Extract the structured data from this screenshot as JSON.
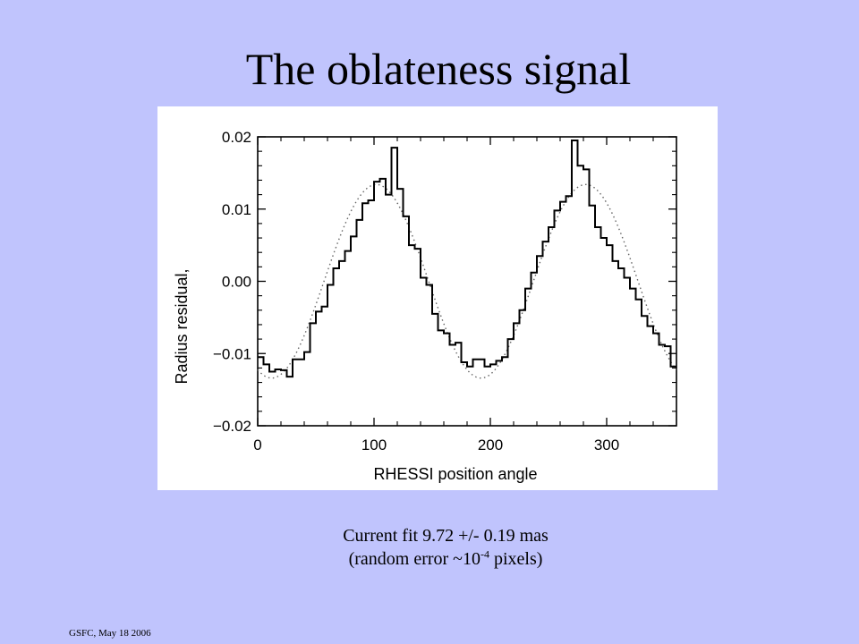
{
  "slide": {
    "title": "The oblateness signal",
    "caption_line1": "Current fit 9.72 +/- 0.19 mas",
    "caption_line2_prefix": "(random error ~10",
    "caption_line2_exp": "-4",
    "caption_line2_suffix": " pixels)",
    "footer": "GSFC,  May 18 2006"
  },
  "chart_data": {
    "type": "line",
    "title": "",
    "xlabel": "RHESSI position angle",
    "ylabel": "Radius residual,",
    "xlim": [
      0,
      360
    ],
    "ylim": [
      -0.02,
      0.02
    ],
    "x_ticks": [
      0,
      100,
      200,
      300
    ],
    "x_tick_labels": [
      "0",
      "100",
      "200",
      "300"
    ],
    "y_ticks": [
      -0.02,
      -0.01,
      0.0,
      0.01,
      0.02
    ],
    "y_tick_labels": [
      "−0.02",
      "−0.01",
      "0.00",
      "0.01",
      "0.02"
    ],
    "grid": false,
    "legend": "none",
    "series": [
      {
        "style": "histogram",
        "color": "#000000",
        "bin_width": 5,
        "x": [
          0,
          5,
          10,
          15,
          20,
          25,
          30,
          35,
          40,
          45,
          50,
          55,
          60,
          65,
          70,
          75,
          80,
          85,
          90,
          95,
          100,
          105,
          110,
          115,
          120,
          125,
          130,
          135,
          140,
          145,
          150,
          155,
          160,
          165,
          170,
          175,
          180,
          185,
          190,
          195,
          200,
          205,
          210,
          215,
          220,
          225,
          230,
          235,
          240,
          245,
          250,
          255,
          260,
          265,
          270,
          275,
          280,
          285,
          290,
          295,
          300,
          305,
          310,
          315,
          320,
          325,
          330,
          335,
          340,
          345,
          350,
          355
        ],
        "values": [
          -0.0105,
          -0.0115,
          -0.0125,
          -0.0122,
          -0.0123,
          -0.0132,
          -0.0108,
          -0.0108,
          -0.0098,
          -0.0058,
          -0.0042,
          -0.0035,
          -0.0005,
          0.0018,
          0.0028,
          0.0042,
          0.0062,
          0.0085,
          0.0108,
          0.0112,
          0.0138,
          0.0142,
          0.012,
          0.0185,
          0.0128,
          0.009,
          0.005,
          0.0045,
          0.0005,
          -0.0005,
          -0.0045,
          -0.0068,
          -0.0072,
          -0.0088,
          -0.0085,
          -0.0112,
          -0.0118,
          -0.0108,
          -0.0108,
          -0.0118,
          -0.0115,
          -0.011,
          -0.0105,
          -0.008,
          -0.0058,
          -0.004,
          -0.001,
          0.0012,
          0.0035,
          0.0055,
          0.0075,
          0.0098,
          0.011,
          0.0118,
          0.0195,
          0.016,
          0.0155,
          0.0105,
          0.0075,
          0.006,
          0.005,
          0.0028,
          0.0018,
          0.0005,
          -0.001,
          -0.0025,
          -0.0048,
          -0.0062,
          -0.0072,
          -0.0088,
          -0.009,
          -0.0118
        ]
      },
      {
        "style": "dotted",
        "color": "#666666",
        "model": "sinusoid",
        "amplitude": 0.0134,
        "period_deg": 180,
        "peak_x": 102
      }
    ]
  }
}
